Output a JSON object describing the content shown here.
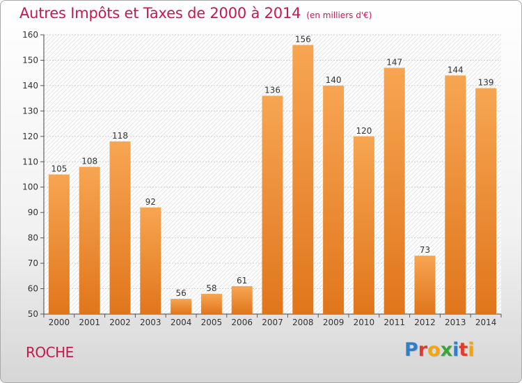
{
  "title": {
    "main": "Autres Impôts et Taxes de 2000 à 2014",
    "sub": "(en milliers d'€)"
  },
  "town": "ROCHE",
  "logo": {
    "letters": [
      "P",
      "r",
      "o",
      "x",
      "i",
      "t",
      "i"
    ],
    "colors": [
      "#2f7fc8",
      "#e23a2c",
      "#f2a50f",
      "#3aa33a",
      "#2f7fc8",
      "#e23a2c",
      "#f2a50f"
    ]
  },
  "chart_data": {
    "type": "bar",
    "categories": [
      "2000",
      "2001",
      "2002",
      "2003",
      "2004",
      "2005",
      "2006",
      "2007",
      "2008",
      "2009",
      "2010",
      "2011",
      "2012",
      "2013",
      "2014"
    ],
    "values": [
      105,
      108,
      118,
      92,
      56,
      58,
      61,
      136,
      156,
      140,
      120,
      147,
      73,
      144,
      139
    ],
    "ylim": [
      50,
      160
    ],
    "yticks": [
      50,
      60,
      70,
      80,
      90,
      100,
      110,
      120,
      130,
      140,
      150,
      160
    ],
    "grid": true,
    "bar_color": "#f0923a"
  }
}
